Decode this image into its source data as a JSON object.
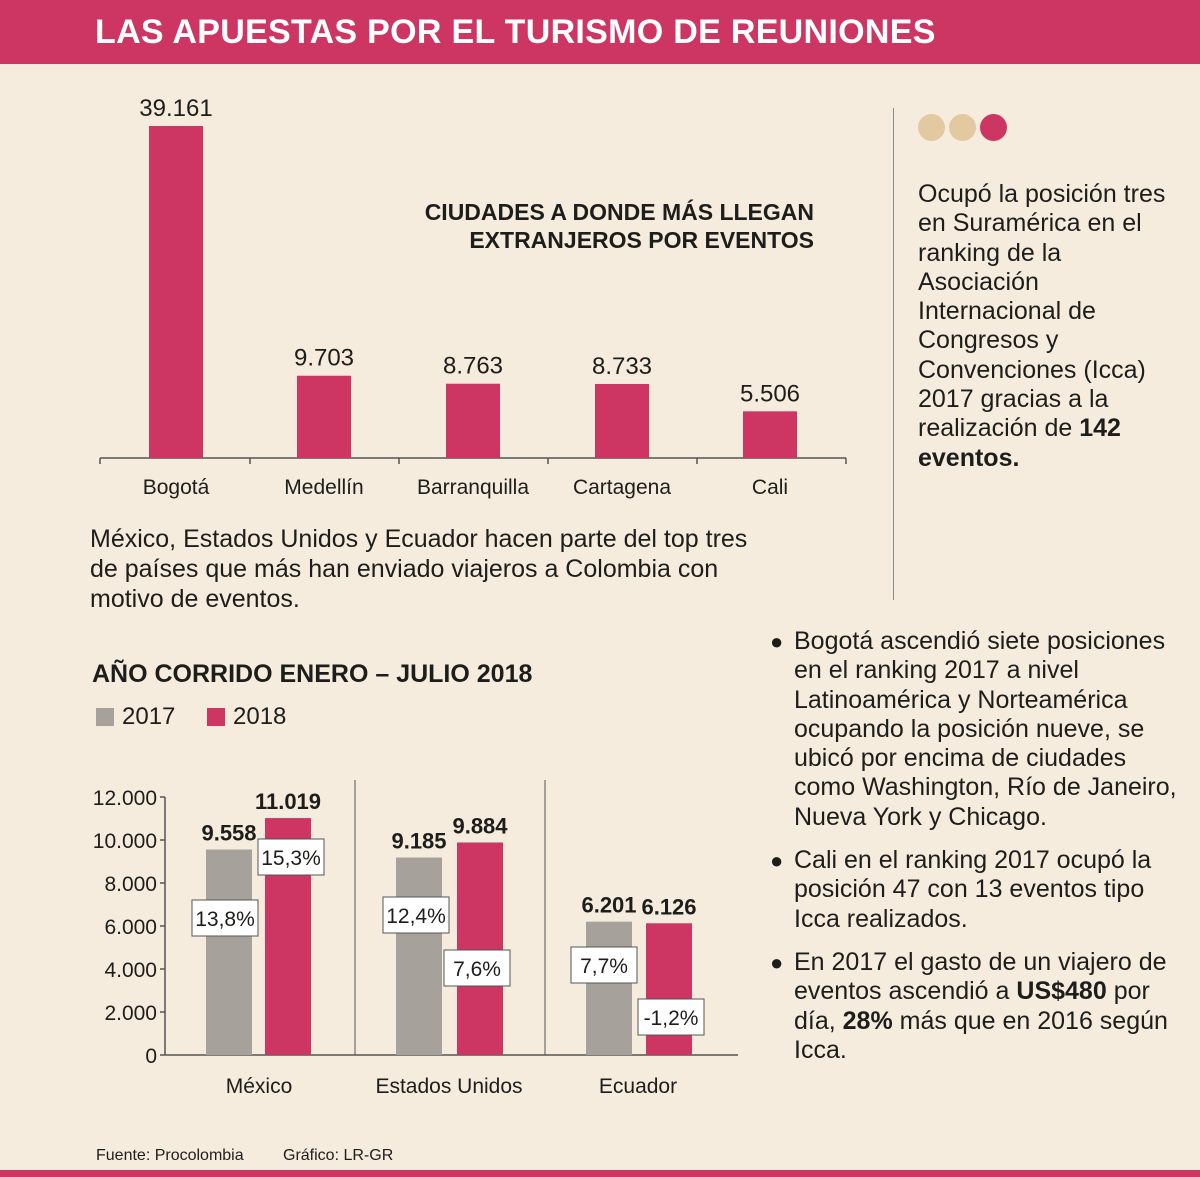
{
  "header": {
    "title": "LAS APUESTAS POR EL TURISMO DE REUNIONES"
  },
  "colors": {
    "accent": "#cd3563",
    "gray": "#a7a19c",
    "dot_light": "#e2c9a0",
    "background": "#f5ecde"
  },
  "chart_data": [
    {
      "type": "bar",
      "title": "CIUDADES A DONDE MÁS LLEGAN EXTRANJEROS POR EVENTOS",
      "title_lines": [
        "CIUDADES A DONDE MÁS LLEGAN",
        "EXTRANJEROS POR EVENTOS"
      ],
      "categories": [
        "Bogotá",
        "Medellín",
        "Barranquilla",
        "Cartagena",
        "Cali"
      ],
      "values": [
        39161,
        9703,
        8763,
        8733,
        5506
      ],
      "value_labels": [
        "39.161",
        "9.703",
        "8.763",
        "8.733",
        "5.506"
      ],
      "xlabel": "",
      "ylabel": "",
      "ylim": [
        0,
        39161
      ]
    },
    {
      "type": "bar",
      "title": "AÑO CORRIDO ENERO – JULIO 2018",
      "categories": [
        "México",
        "Estados Unidos",
        "Ecuador"
      ],
      "series": [
        {
          "name": "2017",
          "values": [
            9558,
            9185,
            6201
          ],
          "value_labels": [
            "9.558",
            "9.185",
            "6.201"
          ],
          "change_labels": [
            "13,8%",
            "12,4%",
            "7,7%"
          ]
        },
        {
          "name": "2018",
          "values": [
            11019,
            9884,
            6126
          ],
          "value_labels": [
            "11.019",
            "9.884",
            "6.126"
          ],
          "change_labels": [
            "15,3%",
            "7,6%",
            "-1,2%"
          ]
        }
      ],
      "yticks": [
        0,
        2000,
        4000,
        6000,
        8000,
        10000,
        12000
      ],
      "ytick_labels": [
        "0",
        "2.000",
        "4.000",
        "6.000",
        "8.000",
        "10.000",
        "12.000"
      ],
      "ylim": [
        0,
        12000
      ],
      "xlabel": "",
      "ylabel": ""
    }
  ],
  "caption": "México, Estados Unidos y Ecuador hacen parte del top tres de países que más han enviado viajeros a Colombia con motivo de eventos.",
  "side_note": {
    "text": "Ocupó la posición tres en Suramérica en el ranking de la Asociación Internacional de Congresos y Convenciones (Icca) 2017 gracias a la realización de ",
    "strong": "142 eventos."
  },
  "bullets": [
    {
      "text": "Bogotá ascendió siete posiciones en el ranking 2017 a nivel Latinoamérica y Norteamérica ocupando la posición nueve, se ubicó por encima de ciudades como Washington, Río de Janeiro, Nueva York y Chicago."
    },
    {
      "text": "Cali en el ranking 2017 ocupó la posición 47 con 13 eventos tipo Icca realizados."
    },
    {
      "pre": "En 2017 el gasto de un viajero de eventos ascendió a ",
      "s1": "US$480",
      "mid": " por día, ",
      "s2": "28%",
      "post": " más que en 2016 según Icca."
    }
  ],
  "bullet_mark": "●",
  "footer": {
    "source": "Fuente: Procolombia",
    "credit": "Gráfico: LR-GR"
  }
}
